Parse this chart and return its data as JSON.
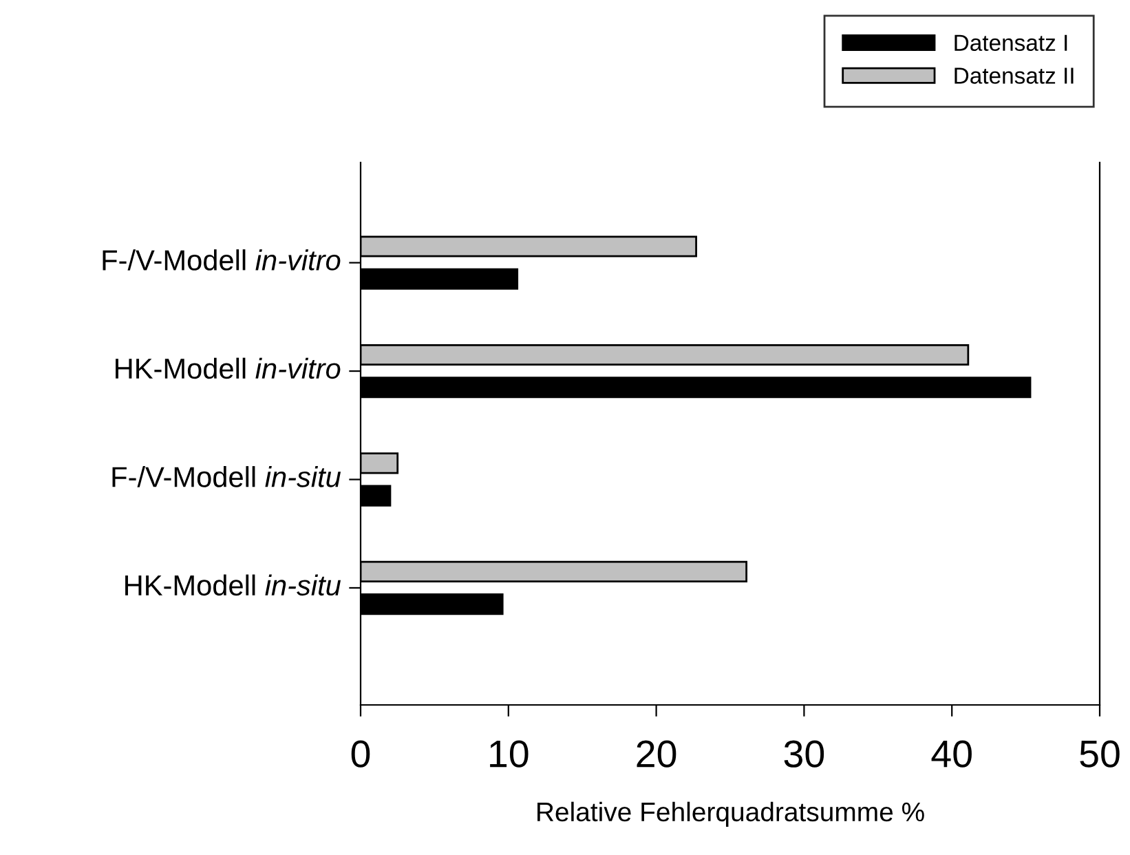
{
  "chart_data": {
    "type": "bar",
    "orientation": "horizontal",
    "categories": [
      "F-/V-Modell in-vitro",
      "HK-Modell in-vitro",
      "F-/V-Modell in-situ",
      "HK-Modell in-situ"
    ],
    "series": [
      {
        "name": "Datensatz I",
        "color": "#000000",
        "values": [
          10.6,
          45.3,
          2.0,
          9.6
        ]
      },
      {
        "name": "Datensatz II",
        "color": "#c0c0c0",
        "values": [
          22.7,
          41.1,
          2.5,
          26.1
        ]
      }
    ],
    "xlabel": "Relative Fehlerquadratsumme %",
    "xlim": [
      0,
      50
    ],
    "xticks": [
      0,
      10,
      20,
      30,
      40,
      50
    ],
    "legend": "top right",
    "grid": false
  }
}
